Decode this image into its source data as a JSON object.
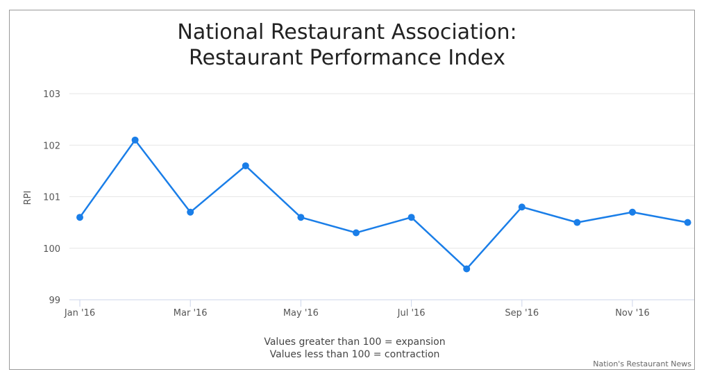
{
  "chart_data": {
    "type": "line",
    "title_lines": [
      "National Restaurant Association:",
      "Restaurant Performance Index"
    ],
    "ylabel": "RPI",
    "xlabel": "",
    "ylim": [
      99,
      103
    ],
    "yticks": [
      99,
      100,
      101,
      102,
      103
    ],
    "x_tick_labels": [
      "Jan '16",
      "Mar '16",
      "May '16",
      "Jul '16",
      "Sep '16",
      "Nov '16"
    ],
    "x_tick_indices": [
      0,
      2,
      4,
      6,
      8,
      10
    ],
    "categories": [
      "Jan '16",
      "Feb '16",
      "Mar '16",
      "Apr '16",
      "May '16",
      "Jun '16",
      "Jul '16",
      "Aug '16",
      "Sep '16",
      "Oct '16",
      "Nov '16",
      "Dec '16"
    ],
    "series": [
      {
        "values": [
          100.6,
          102.1,
          100.7,
          101.6,
          100.6,
          100.3,
          100.6,
          99.6,
          100.8,
          100.5,
          100.7,
          100.5
        ],
        "color": "#1a7ee8"
      }
    ],
    "grid": true,
    "notes": [
      "Values greater than 100 = expansion",
      "Values less than 100 = contraction"
    ],
    "credit": "Nation's Restaurant News",
    "colors": {
      "grid": "#e6e6e6",
      "axis": "#ccd6eb",
      "line": "#1a7ee8"
    }
  }
}
